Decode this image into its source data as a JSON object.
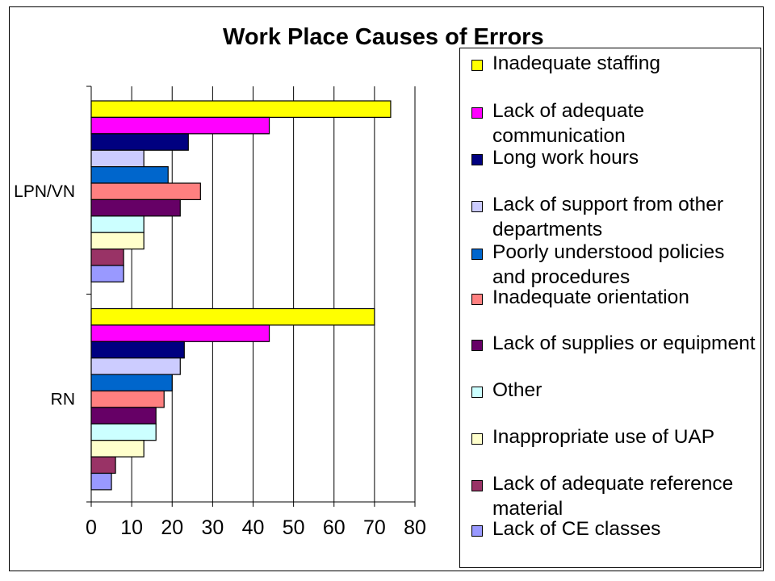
{
  "chart_data": {
    "type": "bar",
    "orientation": "horizontal",
    "title": "Work Place Causes of Errors",
    "categories": [
      "LPN/VN",
      "RN"
    ],
    "x_ticks": [
      "0",
      "10",
      "20",
      "30",
      "40",
      "50",
      "60",
      "70",
      "80"
    ],
    "xlim": [
      0,
      80
    ],
    "grid": "vertical",
    "legend_position": "right",
    "series": [
      {
        "name": "Inadequate staffing",
        "color": "#ffff00",
        "values": [
          74,
          70
        ]
      },
      {
        "name": "Lack of adequate communication",
        "color": "#ff00ff",
        "values": [
          44,
          44
        ]
      },
      {
        "name": "Long work hours",
        "color": "#000080",
        "values": [
          24,
          23
        ]
      },
      {
        "name": "Lack of support from other departments",
        "color": "#ccccff",
        "values": [
          13,
          22
        ]
      },
      {
        "name": "Poorly understood policies and procedures",
        "color": "#0066cc",
        "values": [
          19,
          20
        ]
      },
      {
        "name": "Inadequate orientation",
        "color": "#ff8080",
        "values": [
          27,
          18
        ]
      },
      {
        "name": "Lack of supplies or equipment",
        "color": "#660066",
        "values": [
          22,
          16
        ]
      },
      {
        "name": "Other",
        "color": "#ccffff",
        "values": [
          13,
          16
        ]
      },
      {
        "name": "Inappropriate use of UAP",
        "color": "#ffffcc",
        "values": [
          13,
          13
        ]
      },
      {
        "name": "Lack of adequate reference material",
        "color": "#993366",
        "values": [
          8,
          6
        ]
      },
      {
        "name": "Lack of CE classes",
        "color": "#9999ff",
        "values": [
          8,
          5
        ]
      }
    ]
  }
}
